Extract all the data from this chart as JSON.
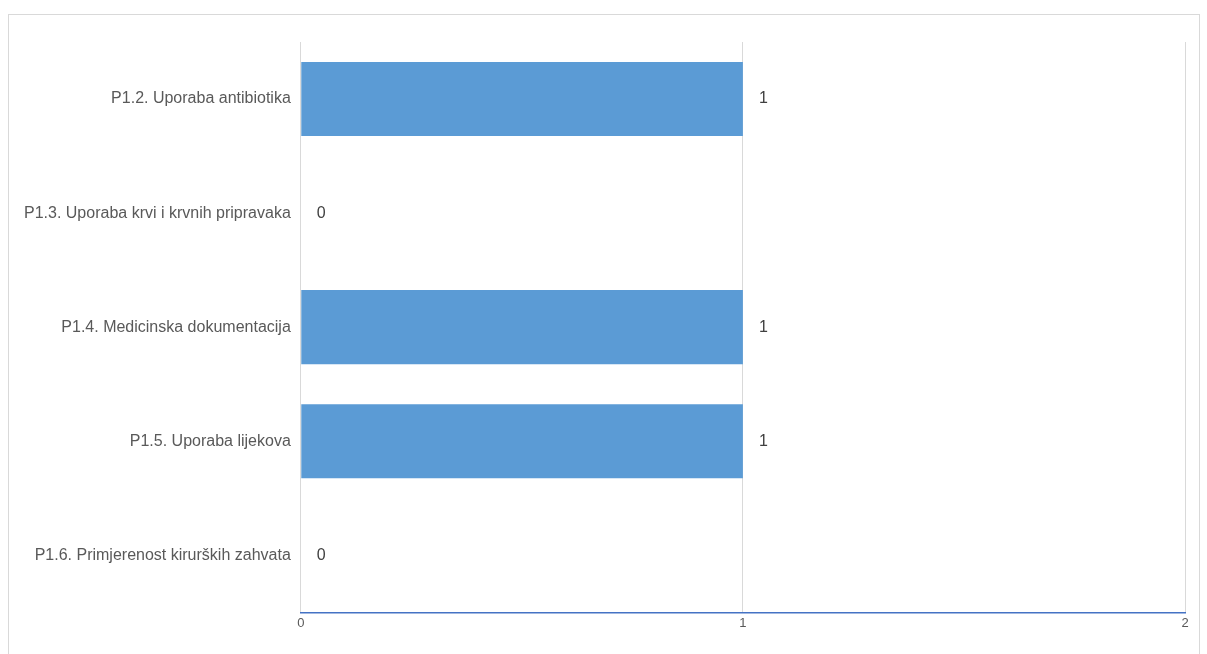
{
  "chart_data": {
    "type": "bar",
    "orientation": "horizontal",
    "categories": [
      "P1.2. Uporaba antibiotika",
      "P1.3. Uporaba krvi i krvnih pripravaka",
      "P1.4. Medicinska dokumentacija",
      "P1.5. Uporaba lijekova",
      "P1.6. Primjerenost kirurških zahvata"
    ],
    "values": [
      1,
      0,
      1,
      1,
      0
    ],
    "color": "#5b9bd5",
    "xlim": [
      0,
      2
    ],
    "xticks": [
      0,
      1,
      2
    ],
    "grid": "x",
    "data_labels": true
  }
}
